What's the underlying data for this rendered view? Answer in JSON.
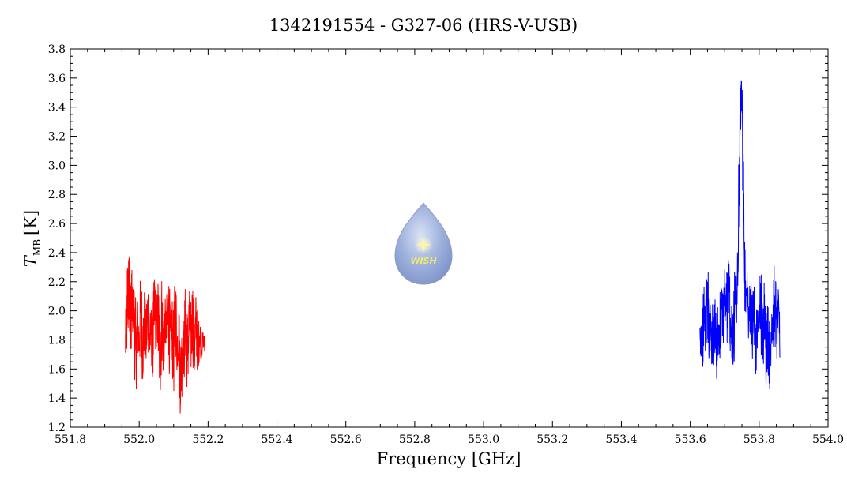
{
  "chart_data": {
    "type": "line",
    "title": "1342191554 - G327-06 (HRS-V-USB)",
    "xlabel": "Frequency [GHz]",
    "ylabel_main": "T",
    "ylabel_sub": "MB",
    "ylabel_unit": "[K]",
    "xlim": [
      551.8,
      554.0
    ],
    "ylim": [
      1.2,
      3.8
    ],
    "x_ticks": [
      "551.8",
      "552.0",
      "552.2",
      "552.4",
      "552.6",
      "552.8",
      "553.0",
      "553.2",
      "553.4",
      "553.6",
      "553.8",
      "554.0"
    ],
    "y_ticks": [
      "1.2",
      "1.4",
      "1.6",
      "1.8",
      "2.0",
      "2.2",
      "2.4",
      "2.6",
      "2.8",
      "3.0",
      "3.2",
      "3.4",
      "3.6",
      "3.8"
    ],
    "grid": false,
    "series": [
      {
        "color": "#ff0000",
        "x": [
          551.96,
          551.962,
          551.964,
          551.966,
          551.968,
          551.97,
          551.972,
          551.974,
          551.976,
          551.978,
          551.98,
          551.985,
          551.99,
          551.995,
          552.0,
          552.005,
          552.01,
          552.015,
          552.02,
          552.025,
          552.03,
          552.035,
          552.04,
          552.045,
          552.05,
          552.055,
          552.06,
          552.065,
          552.07,
          552.075,
          552.08,
          552.085,
          552.09,
          552.095,
          552.1,
          552.105,
          552.11,
          552.115,
          552.12,
          552.125,
          552.13,
          552.135,
          552.14,
          552.145,
          552.15,
          552.155,
          552.16,
          552.165,
          552.17,
          552.175,
          552.18,
          552.185,
          552.19
        ],
        "y": [
          1.63,
          2.05,
          1.75,
          2.32,
          1.82,
          2.45,
          1.9,
          2.2,
          1.7,
          2.28,
          1.85,
          2.2,
          1.48,
          2.05,
          1.62,
          2.22,
          1.55,
          2.1,
          1.6,
          2.2,
          1.65,
          2.0,
          1.55,
          2.22,
          1.68,
          2.18,
          1.42,
          2.2,
          1.58,
          2.05,
          1.7,
          2.22,
          1.55,
          2.08,
          1.48,
          2.2,
          1.6,
          2.0,
          1.33,
          1.92,
          1.55,
          2.15,
          1.48,
          2.12,
          1.6,
          2.18,
          1.55,
          2.08,
          1.6,
          1.95,
          1.68,
          1.85,
          1.72
        ]
      },
      {
        "color": "#0000ff",
        "x": [
          553.628,
          553.632,
          553.636,
          553.64,
          553.645,
          553.65,
          553.655,
          553.66,
          553.665,
          553.67,
          553.675,
          553.68,
          553.685,
          553.69,
          553.695,
          553.7,
          553.705,
          553.71,
          553.715,
          553.72,
          553.725,
          553.73,
          553.735,
          553.74,
          553.744,
          553.748,
          553.752,
          553.756,
          553.76,
          553.765,
          553.77,
          553.775,
          553.78,
          553.785,
          553.79,
          553.795,
          553.8,
          553.805,
          553.81,
          553.815,
          553.82,
          553.825,
          553.83,
          553.835,
          553.84,
          553.845,
          553.85,
          553.855,
          553.86
        ],
        "y": [
          1.57,
          1.98,
          1.65,
          2.15,
          1.72,
          2.28,
          1.7,
          2.15,
          1.55,
          2.08,
          1.52,
          2.02,
          1.6,
          2.18,
          1.8,
          2.3,
          1.78,
          2.45,
          1.7,
          2.0,
          1.6,
          2.28,
          1.9,
          2.6,
          3.2,
          3.56,
          3.1,
          2.5,
          2.0,
          2.28,
          1.82,
          2.2,
          1.7,
          2.15,
          1.6,
          2.05,
          1.85,
          2.25,
          1.6,
          2.18,
          1.52,
          2.0,
          1.5,
          1.98,
          1.75,
          2.38,
          1.65,
          2.2,
          1.68
        ]
      }
    ],
    "logo_text": "WISH"
  }
}
